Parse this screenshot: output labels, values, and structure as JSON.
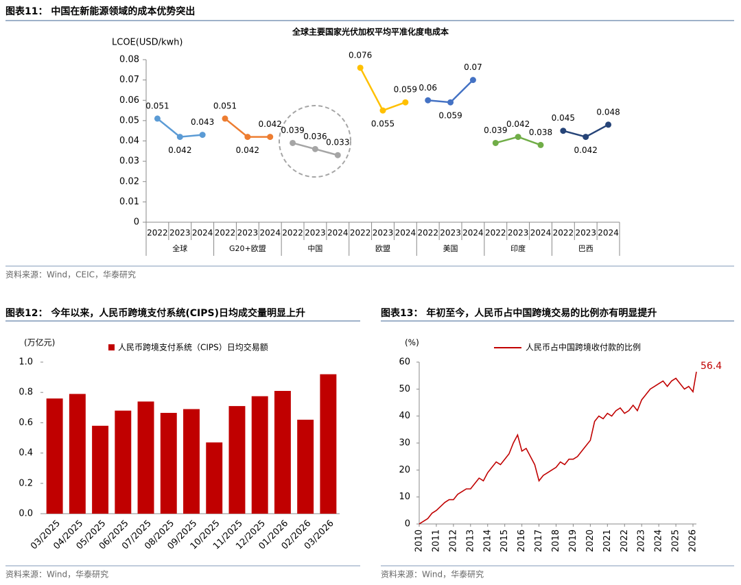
{
  "figures": [
    {
      "heading": "图表11： 中国在新能源领域的成本优势突出",
      "source": "资料来源：Wind，CEIC，华泰研究"
    },
    {
      "heading": "图表12： 今年以来，人民币跨境支付系统(CIPS)日均成交量明显上升",
      "source": "资料来源：Wind，华泰研究"
    },
    {
      "heading": "图表13： 年初至今，人民币占中国跨境交易的比例亦有明显提升",
      "source": "资料来源：Wind，华泰研究"
    }
  ],
  "chart_data": [
    {
      "type": "grouped_line",
      "title": "全球主要国家光伏加权平均平准化度电成本",
      "y_label": "LCOE(USD/kwh)",
      "ylim": [
        0,
        0.08
      ],
      "yticks": [
        0,
        0.01,
        0.02,
        0.03,
        0.04,
        0.05,
        0.06,
        0.07,
        0.08
      ],
      "series": [
        {
          "name": "全球",
          "color": "#5b9bd5",
          "categories": [
            "2022",
            "2023",
            "2024"
          ],
          "values": [
            0.051,
            0.042,
            0.043
          ]
        },
        {
          "name": "G20+欧盟",
          "color": "#ed7d31",
          "categories": [
            "2022",
            "2023",
            "2024"
          ],
          "values": [
            0.051,
            0.042,
            0.042
          ]
        },
        {
          "name": "中国",
          "color": "#a5a5a5",
          "categories": [
            "2022",
            "2023",
            "2024"
          ],
          "values": [
            0.039,
            0.036,
            0.033
          ]
        },
        {
          "name": "欧盟",
          "color": "#ffc000",
          "categories": [
            "2022",
            "2023",
            "2024"
          ],
          "values": [
            0.076,
            0.055,
            0.059
          ]
        },
        {
          "name": "美国",
          "color": "#4472c4",
          "categories": [
            "2022",
            "2023",
            "2024"
          ],
          "values": [
            0.06,
            0.059,
            0.07
          ]
        },
        {
          "name": "印度",
          "color": "#70ad47",
          "categories": [
            "2022",
            "2023",
            "2024"
          ],
          "values": [
            0.039,
            0.042,
            0.038
          ]
        },
        {
          "name": "巴西",
          "color": "#264478",
          "categories": [
            "2022",
            "2023",
            "2024"
          ],
          "values": [
            0.045,
            0.042,
            0.048
          ]
        }
      ]
    },
    {
      "type": "bar",
      "y_label": "(万亿元)",
      "ylim": [
        0,
        1
      ],
      "yticks": [
        {
          "value": 0,
          "label": "0.0"
        },
        0.2,
        0.4,
        0.6,
        0.8,
        {
          "value": 1,
          "label": "1.0"
        }
      ],
      "categories": [
        "03/2025",
        "04/2025",
        "05/2025",
        "06/2025",
        "07/2025",
        "08/2025",
        "09/2025",
        "10/2025",
        "11/2025",
        "12/2025",
        "01/2026",
        "02/2026",
        "03/2026"
      ],
      "series": [
        {
          "name": "人民币跨境支付系统（CIPS）日均交易额",
          "color": "#c00000",
          "values": [
            0.76,
            0.79,
            0.58,
            0.68,
            0.74,
            0.665,
            0.69,
            0.47,
            0.71,
            0.775,
            0.81,
            0.62,
            0.92
          ]
        }
      ]
    },
    {
      "type": "line",
      "y_label": "(%)",
      "xlim": [
        2010,
        2026.2
      ],
      "xticks": [
        2010,
        2011,
        2012,
        2013,
        2014,
        2015,
        2016,
        2017,
        2018,
        2019,
        2020,
        2021,
        2022,
        2023,
        2024,
        2025,
        2026
      ],
      "ylim": [
        0,
        60
      ],
      "yticks": [
        0,
        10,
        20,
        30,
        40,
        50,
        60
      ],
      "x": [
        2010,
        2010.25,
        2010.5,
        2010.75,
        2011,
        2011.25,
        2011.5,
        2011.75,
        2012,
        2012.25,
        2012.5,
        2012.75,
        2013,
        2013.25,
        2013.5,
        2013.75,
        2014,
        2014.25,
        2014.5,
        2014.75,
        2015,
        2015.25,
        2015.5,
        2015.75,
        2016,
        2016.25,
        2016.5,
        2016.75,
        2017,
        2017.25,
        2017.5,
        2017.75,
        2018,
        2018.25,
        2018.5,
        2018.75,
        2019,
        2019.25,
        2019.5,
        2019.75,
        2020,
        2020.25,
        2020.5,
        2020.75,
        2021,
        2021.25,
        2021.5,
        2021.75,
        2022,
        2022.25,
        2022.5,
        2022.75,
        2023,
        2023.25,
        2023.5,
        2023.75,
        2024,
        2024.25,
        2024.5,
        2024.75,
        2025,
        2025.25,
        2025.5,
        2025.75,
        2026,
        2026.2
      ],
      "series": [
        {
          "name": "人民币占中国跨境收付款的比例",
          "color": "#c00000",
          "values": [
            0,
            1,
            2,
            4,
            5,
            6.5,
            8,
            9,
            9,
            11,
            12,
            13,
            13,
            15,
            17,
            16,
            19,
            21,
            23,
            22,
            24,
            26,
            30,
            33,
            27,
            28,
            25,
            22,
            16,
            18,
            19,
            20,
            21,
            23,
            22,
            24,
            24,
            25,
            27,
            29,
            31,
            38,
            40,
            39,
            41,
            40,
            42,
            43,
            41,
            42,
            44,
            42,
            46,
            48,
            50,
            51,
            52,
            53,
            51,
            53,
            54,
            52,
            50,
            51,
            49,
            56.4
          ]
        }
      ]
    }
  ]
}
